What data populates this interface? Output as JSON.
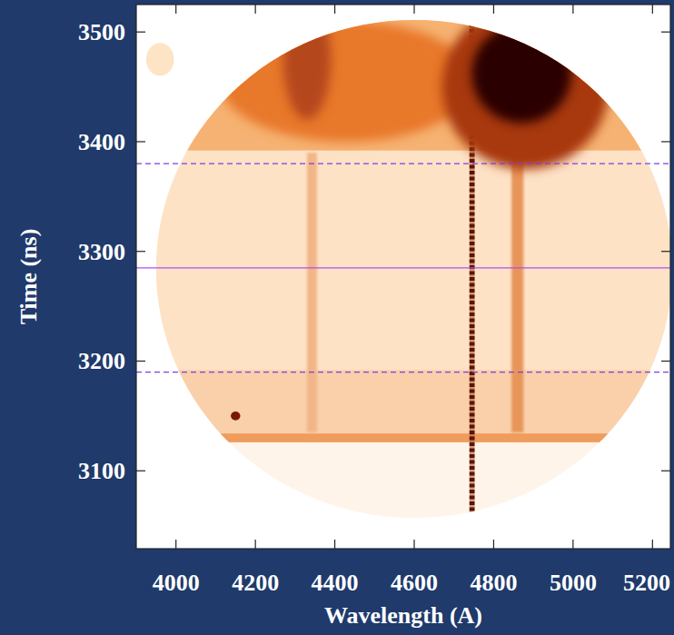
{
  "chart_data": {
    "type": "streak_image",
    "x_label": "Wavelength (A)",
    "y_label": "Time (ns)",
    "xlim": [
      3900,
      5245
    ],
    "ylim": [
      3029,
      3525
    ],
    "xticks": [
      4000,
      4200,
      4400,
      4600,
      4800,
      5000,
      5200
    ],
    "yticks": [
      3100,
      3200,
      3300,
      3400,
      3500
    ],
    "detector": {
      "x": 4600,
      "y": 3284,
      "rx": 650,
      "ry": 227,
      "color": "#fff4ea"
    },
    "bands": [
      {
        "x0": 3940,
        "x1": 5250,
        "y0": 3128,
        "y1": 3525,
        "color": "#fde2c6"
      },
      {
        "x0": 3940,
        "x1": 5250,
        "y0": 3128,
        "y1": 3192,
        "color": "#f9d0aa"
      },
      {
        "x0": 3940,
        "x1": 5250,
        "y0": 3126,
        "y1": 3134,
        "color": "#ef9c5c"
      },
      {
        "x0": 3940,
        "x1": 5250,
        "y0": 3392,
        "y1": 3525,
        "color": "#f6b272"
      },
      {
        "x0": 4330,
        "x1": 4355,
        "y0": 3135,
        "y1": 3390,
        "color": "#f2b588"
      },
      {
        "x0": 4845,
        "x1": 4875,
        "y0": 3135,
        "y1": 3390,
        "color": "#e8955a"
      },
      {
        "x0": 4739,
        "x1": 4752,
        "y0": 3058,
        "y1": 3508,
        "color": "#5a1406",
        "line_style": "dashed"
      }
    ],
    "spots": [
      {
        "x": 4430,
        "y": 3455,
        "rx": 320,
        "ry": 55,
        "color": "#e8782a"
      },
      {
        "x": 4330,
        "y": 3475,
        "rx": 60,
        "ry": 55,
        "color": "#b5461a"
      },
      {
        "x": 4880,
        "y": 3450,
        "rx": 210,
        "ry": 75,
        "color": "#a8380f"
      },
      {
        "x": 4870,
        "y": 3462,
        "rx": 125,
        "ry": 45,
        "color": "#2a0500"
      },
      {
        "x": 4150,
        "y": 3150,
        "rx": 12,
        "ry": 4,
        "color": "#7a1a00"
      }
    ],
    "outer_spots": [
      {
        "x": 3960,
        "y": 3475,
        "rx": 35,
        "ry": 15,
        "color": "#fde4c4"
      }
    ],
    "hlines": [
      {
        "y": 3190,
        "color": "#7b3fe0",
        "line_style": "dashed"
      },
      {
        "y": 3285,
        "color": "#b04ff0",
        "line_style": "solid"
      },
      {
        "y": 3380,
        "color": "#7b3fe0",
        "line_style": "dashed"
      }
    ]
  }
}
